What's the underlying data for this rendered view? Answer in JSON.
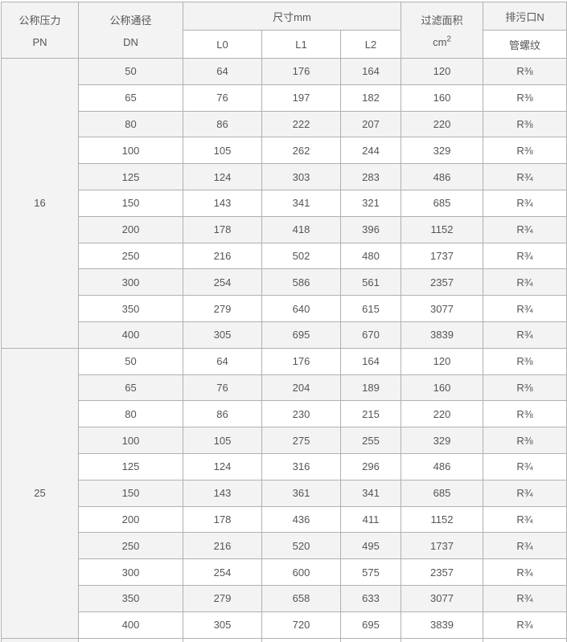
{
  "colors": {
    "border": "#b0b0b0",
    "stripe": "#f3f3f3",
    "header_bg": "#f3f3f3",
    "text": "#555555",
    "background": "#ffffff"
  },
  "table": {
    "header": {
      "pressure_title": "公称压力",
      "pressure_unit": "PN",
      "diameter_title": "公称通径",
      "diameter_unit": "DN",
      "dimensions_title": "尺寸mm",
      "dim_l0": "L0",
      "dim_l1": "L1",
      "dim_l2": "L2",
      "filter_area_title": "过滤面积",
      "filter_area_unit_base": "cm",
      "filter_area_unit_exp": "2",
      "drain_title": "排污口N",
      "drain_subtitle": "管螺纹"
    },
    "sections": [
      {
        "pn": "16",
        "rows": [
          [
            "50",
            "64",
            "176",
            "164",
            "120",
            "R⅜"
          ],
          [
            "65",
            "76",
            "197",
            "182",
            "160",
            "R⅜"
          ],
          [
            "80",
            "86",
            "222",
            "207",
            "220",
            "R⅜"
          ],
          [
            "100",
            "105",
            "262",
            "244",
            "329",
            "R⅜"
          ],
          [
            "125",
            "124",
            "303",
            "283",
            "486",
            "R¾"
          ],
          [
            "150",
            "143",
            "341",
            "321",
            "685",
            "R¾"
          ],
          [
            "200",
            "178",
            "418",
            "396",
            "1152",
            "R¾"
          ],
          [
            "250",
            "216",
            "502",
            "480",
            "1737",
            "R¾"
          ],
          [
            "300",
            "254",
            "586",
            "561",
            "2357",
            "R¾"
          ],
          [
            "350",
            "279",
            "640",
            "615",
            "3077",
            "R¾"
          ],
          [
            "400",
            "305",
            "695",
            "670",
            "3839",
            "R¾"
          ]
        ]
      },
      {
        "pn": "25",
        "rows": [
          [
            "50",
            "64",
            "176",
            "164",
            "120",
            "R⅜"
          ],
          [
            "65",
            "76",
            "204",
            "189",
            "160",
            "R⅜"
          ],
          [
            "80",
            "86",
            "230",
            "215",
            "220",
            "R⅜"
          ],
          [
            "100",
            "105",
            "275",
            "255",
            "329",
            "R⅜"
          ],
          [
            "125",
            "124",
            "316",
            "296",
            "486",
            "R¾"
          ],
          [
            "150",
            "143",
            "361",
            "341",
            "685",
            "R¾"
          ],
          [
            "200",
            "178",
            "436",
            "411",
            "1152",
            "R¾"
          ],
          [
            "250",
            "216",
            "520",
            "495",
            "1737",
            "R¾"
          ],
          [
            "300",
            "254",
            "600",
            "575",
            "2357",
            "R¾"
          ],
          [
            "350",
            "279",
            "658",
            "633",
            "3077",
            "R¾"
          ],
          [
            "400",
            "305",
            "720",
            "695",
            "3839",
            "R¾"
          ]
        ]
      },
      {
        "pn": "",
        "partial": true,
        "rows": [
          [
            "",
            "",
            "",
            "",
            "",
            ""
          ]
        ]
      }
    ]
  }
}
